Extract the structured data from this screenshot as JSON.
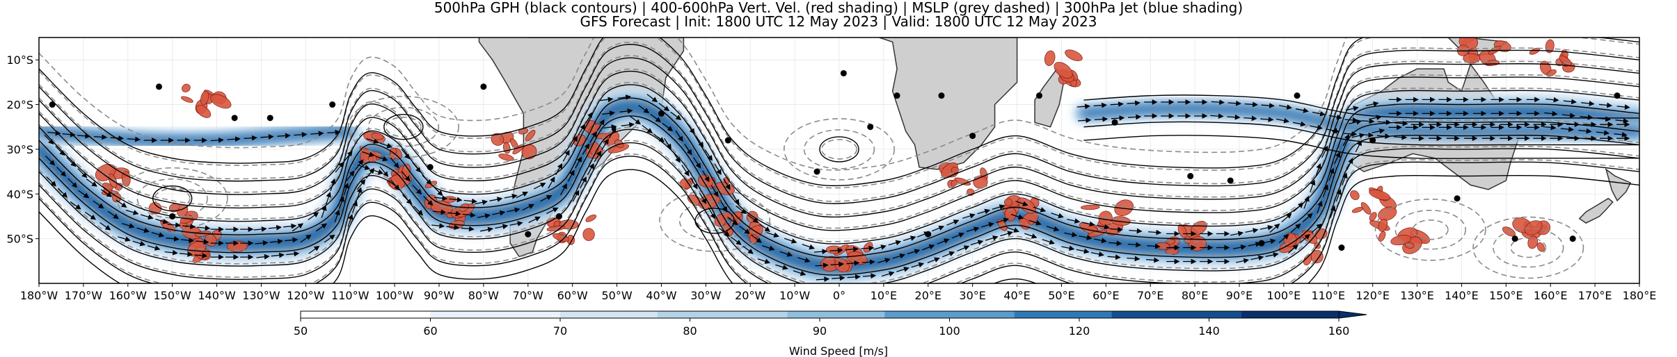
{
  "title": {
    "line1": "500hPa GPH (black contours) | 400-600hPa Vert. Vel. (red shading) | MSLP (grey dashed) | 300hPa Jet (blue shading)",
    "line2": "GFS Forecast | Init: 1800 UTC 12 May 2023 | Valid: 1800 UTC 12 May 2023"
  },
  "chart_data": {
    "type": "map",
    "projection": "PlateCarree",
    "region": "Southern Hemisphere mid-latitudes",
    "lon_range": [
      -180,
      180
    ],
    "lat_range": [
      -60,
      -5
    ],
    "x_ticks": [
      "180°W",
      "170°W",
      "160°W",
      "150°W",
      "140°W",
      "130°W",
      "120°W",
      "110°W",
      "100°W",
      "90°W",
      "80°W",
      "70°W",
      "60°W",
      "50°W",
      "40°W",
      "30°W",
      "20°W",
      "10°W",
      "0°",
      "10°E",
      "20°E",
      "30°E",
      "40°E",
      "50°E",
      "60°E",
      "70°E",
      "80°E",
      "90°E",
      "100°E",
      "110°E",
      "120°E",
      "130°E",
      "140°E",
      "150°E",
      "160°E",
      "170°E",
      "180°E"
    ],
    "y_ticks": [
      "10°S",
      "20°S",
      "30°S",
      "40°S",
      "50°S"
    ],
    "y_tick_values": [
      -10,
      -20,
      -30,
      -40,
      -50
    ],
    "layers": [
      {
        "name": "500hPa GPH",
        "style": "black contours"
      },
      {
        "name": "400-600hPa Vert. Vel.",
        "style": "red shading"
      },
      {
        "name": "MSLP",
        "style": "grey dashed"
      },
      {
        "name": "300hPa Jet",
        "style": "blue shading with wind vectors"
      }
    ],
    "colorbar": {
      "label": "Wind Speed [m/s]",
      "ticks": [
        50,
        60,
        70,
        80,
        90,
        100,
        120,
        140,
        160
      ],
      "extend": "max",
      "colors": [
        "#ffffff",
        "#eaf2fa",
        "#d3e4f3",
        "#b4d3e9",
        "#8fbfdf",
        "#5a9ccd",
        "#2f7ab6",
        "#134f8f",
        "#08306b"
      ]
    },
    "jet_axis": [
      [
        -180,
        -30
      ],
      [
        -170,
        -40
      ],
      [
        -160,
        -47
      ],
      [
        -150,
        -50
      ],
      [
        -140,
        -51
      ],
      [
        -130,
        -51
      ],
      [
        -120,
        -50
      ],
      [
        -113,
        -45
      ],
      [
        -110,
        -36
      ],
      [
        -106,
        -31
      ],
      [
        -100,
        -33
      ],
      [
        -95,
        -39
      ],
      [
        -90,
        -44
      ],
      [
        -80,
        -45
      ],
      [
        -70,
        -43
      ],
      [
        -62,
        -39
      ],
      [
        -57,
        -30
      ],
      [
        -52,
        -22
      ],
      [
        -44,
        -21
      ],
      [
        -36,
        -27
      ],
      [
        -30,
        -36
      ],
      [
        -24,
        -46
      ],
      [
        -16,
        -52
      ],
      [
        -4,
        -56
      ],
      [
        10,
        -55
      ],
      [
        20,
        -52
      ],
      [
        30,
        -48
      ],
      [
        40,
        -45
      ],
      [
        52,
        -49
      ],
      [
        62,
        -51
      ],
      [
        75,
        -52
      ],
      [
        90,
        -52
      ],
      [
        100,
        -50
      ],
      [
        108,
        -43
      ],
      [
        112,
        -32
      ],
      [
        116,
        -24
      ],
      [
        125,
        -22
      ],
      [
        140,
        -22
      ],
      [
        160,
        -22
      ],
      [
        180,
        -24
      ]
    ],
    "jet_axis_secondary": [
      [
        55,
        -22
      ],
      [
        70,
        -21
      ],
      [
        85,
        -21
      ],
      [
        100,
        -22
      ],
      [
        115,
        -25
      ],
      [
        130,
        -26
      ],
      [
        150,
        -26
      ],
      [
        180,
        -26
      ]
    ],
    "jet_axis_tertiary": [
      [
        -180,
        -26
      ],
      [
        -170,
        -27
      ],
      [
        -155,
        -28
      ],
      [
        -140,
        -28
      ],
      [
        -125,
        -27
      ],
      [
        -110,
        -26
      ]
    ],
    "vertical_velocity_regions": [
      {
        "lon": -162,
        "lat": -38
      },
      {
        "lon": -150,
        "lat": -46
      },
      {
        "lon": -140,
        "lat": -52
      },
      {
        "lon": -143,
        "lat": -19
      },
      {
        "lon": -104,
        "lat": -30
      },
      {
        "lon": -96,
        "lat": -36
      },
      {
        "lon": -88,
        "lat": -44
      },
      {
        "lon": -73,
        "lat": -29
      },
      {
        "lon": -60,
        "lat": -48
      },
      {
        "lon": -54,
        "lat": -28
      },
      {
        "lon": -30,
        "lat": -40
      },
      {
        "lon": -22,
        "lat": -47
      },
      {
        "lon": 2,
        "lat": -55
      },
      {
        "lon": 28,
        "lat": -37
      },
      {
        "lon": 40,
        "lat": -44
      },
      {
        "lon": 60,
        "lat": -46
      },
      {
        "lon": 77,
        "lat": -50
      },
      {
        "lon": 104,
        "lat": -52
      },
      {
        "lon": 120,
        "lat": -42
      },
      {
        "lon": 126,
        "lat": -50
      },
      {
        "lon": 154,
        "lat": -50
      },
      {
        "lon": 160,
        "lat": -10
      },
      {
        "lon": 145,
        "lat": -8
      },
      {
        "lon": 50,
        "lat": -12
      }
    ],
    "cyclone_centers": [
      {
        "lon": -150,
        "lat": -41
      },
      {
        "lon": -98,
        "lat": -25
      },
      {
        "lon": -28,
        "lat": -46
      },
      {
        "lon": 0,
        "lat": -30
      },
      {
        "lon": 133,
        "lat": -48
      },
      {
        "lon": 155,
        "lat": -52
      }
    ]
  },
  "colors": {
    "land": "#cfcfcf",
    "coast": "#333333",
    "gph": "#000000",
    "mslp": "#8a8a8a",
    "vertical_velocity": "#d9573f",
    "vertical_velocity_edge": "#7a1a12"
  }
}
